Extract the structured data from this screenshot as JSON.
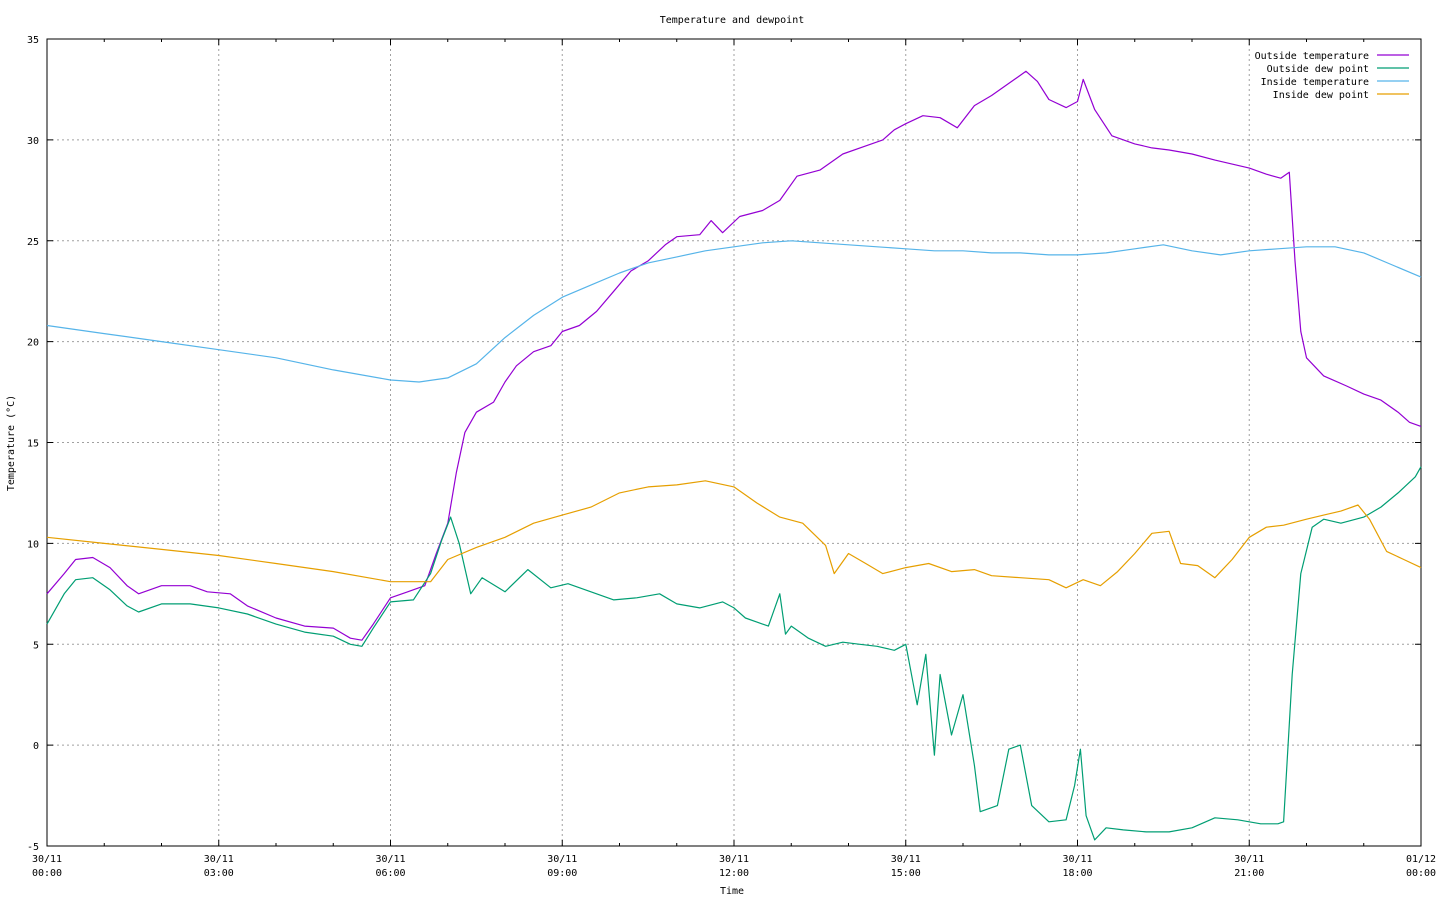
{
  "chart_data": {
    "type": "line",
    "title": "Temperature and dewpoint",
    "xlabel": "Time",
    "ylabel": "Temperature (°C)",
    "ylim": [
      -5,
      35
    ],
    "xlim": [
      0,
      24
    ],
    "grid": true,
    "legend_position": "top-right",
    "yticks": [
      -5,
      0,
      5,
      10,
      15,
      20,
      25,
      30,
      35
    ],
    "xticks": [
      {
        "x": 0,
        "date": "30/11",
        "time": "00:00"
      },
      {
        "x": 3,
        "date": "30/11",
        "time": "03:00"
      },
      {
        "x": 6,
        "date": "30/11",
        "time": "06:00"
      },
      {
        "x": 9,
        "date": "30/11",
        "time": "09:00"
      },
      {
        "x": 12,
        "date": "30/11",
        "time": "12:00"
      },
      {
        "x": 15,
        "date": "30/11",
        "time": "15:00"
      },
      {
        "x": 18,
        "date": "30/11",
        "time": "18:00"
      },
      {
        "x": 21,
        "date": "30/11",
        "time": "21:00"
      },
      {
        "x": 24,
        "date": "01/12",
        "time": "00:00"
      }
    ],
    "series": [
      {
        "name": "Outside temperature",
        "color": "#9400d3",
        "points": [
          [
            0,
            7.5
          ],
          [
            0.3,
            8.5
          ],
          [
            0.5,
            9.2
          ],
          [
            0.8,
            9.3
          ],
          [
            1.1,
            8.8
          ],
          [
            1.4,
            7.9
          ],
          [
            1.6,
            7.5
          ],
          [
            2.0,
            7.9
          ],
          [
            2.5,
            7.9
          ],
          [
            2.8,
            7.6
          ],
          [
            3.2,
            7.5
          ],
          [
            3.5,
            6.9
          ],
          [
            4.0,
            6.3
          ],
          [
            4.5,
            5.9
          ],
          [
            5.0,
            5.8
          ],
          [
            5.3,
            5.3
          ],
          [
            5.5,
            5.2
          ],
          [
            5.7,
            6.0
          ],
          [
            6.0,
            7.3
          ],
          [
            6.3,
            7.6
          ],
          [
            6.6,
            7.9
          ],
          [
            6.8,
            9.5
          ],
          [
            7.0,
            11.0
          ],
          [
            7.15,
            13.5
          ],
          [
            7.3,
            15.5
          ],
          [
            7.5,
            16.5
          ],
          [
            7.8,
            17.0
          ],
          [
            8.0,
            18.0
          ],
          [
            8.2,
            18.8
          ],
          [
            8.5,
            19.5
          ],
          [
            8.8,
            19.8
          ],
          [
            9.0,
            20.5
          ],
          [
            9.3,
            20.8
          ],
          [
            9.6,
            21.5
          ],
          [
            9.9,
            22.5
          ],
          [
            10.2,
            23.5
          ],
          [
            10.5,
            24.0
          ],
          [
            10.8,
            24.8
          ],
          [
            11.0,
            25.2
          ],
          [
            11.4,
            25.3
          ],
          [
            11.6,
            26.0
          ],
          [
            11.8,
            25.4
          ],
          [
            12.1,
            26.2
          ],
          [
            12.5,
            26.5
          ],
          [
            12.8,
            27.0
          ],
          [
            13.1,
            28.2
          ],
          [
            13.5,
            28.5
          ],
          [
            13.9,
            29.3
          ],
          [
            14.3,
            29.7
          ],
          [
            14.6,
            30.0
          ],
          [
            14.8,
            30.5
          ],
          [
            15.0,
            30.8
          ],
          [
            15.3,
            31.2
          ],
          [
            15.6,
            31.1
          ],
          [
            15.9,
            30.6
          ],
          [
            16.2,
            31.7
          ],
          [
            16.5,
            32.2
          ],
          [
            16.8,
            32.8
          ],
          [
            17.1,
            33.4
          ],
          [
            17.3,
            32.9
          ],
          [
            17.5,
            32.0
          ],
          [
            17.8,
            31.6
          ],
          [
            18.0,
            31.9
          ],
          [
            18.1,
            33.0
          ],
          [
            18.3,
            31.5
          ],
          [
            18.6,
            30.2
          ],
          [
            19.0,
            29.8
          ],
          [
            19.3,
            29.6
          ],
          [
            19.6,
            29.5
          ],
          [
            20.0,
            29.3
          ],
          [
            20.4,
            29.0
          ],
          [
            20.7,
            28.8
          ],
          [
            21.0,
            28.6
          ],
          [
            21.3,
            28.3
          ],
          [
            21.55,
            28.1
          ],
          [
            21.7,
            28.4
          ],
          [
            21.8,
            24.0
          ],
          [
            21.9,
            20.5
          ],
          [
            22.0,
            19.2
          ],
          [
            22.3,
            18.3
          ],
          [
            22.7,
            17.8
          ],
          [
            23.0,
            17.4
          ],
          [
            23.3,
            17.1
          ],
          [
            23.6,
            16.5
          ],
          [
            23.8,
            16.0
          ],
          [
            24.0,
            15.8
          ]
        ]
      },
      {
        "name": "Outside dew point",
        "color": "#009e73",
        "points": [
          [
            0,
            6.0
          ],
          [
            0.3,
            7.5
          ],
          [
            0.5,
            8.2
          ],
          [
            0.8,
            8.3
          ],
          [
            1.1,
            7.7
          ],
          [
            1.4,
            6.9
          ],
          [
            1.6,
            6.6
          ],
          [
            2.0,
            7.0
          ],
          [
            2.5,
            7.0
          ],
          [
            3.0,
            6.8
          ],
          [
            3.5,
            6.5
          ],
          [
            4.0,
            6.0
          ],
          [
            4.5,
            5.6
          ],
          [
            5.0,
            5.4
          ],
          [
            5.3,
            5.0
          ],
          [
            5.5,
            4.9
          ],
          [
            5.7,
            5.8
          ],
          [
            6.0,
            7.1
          ],
          [
            6.4,
            7.2
          ],
          [
            6.7,
            8.5
          ],
          [
            6.9,
            10.2
          ],
          [
            7.05,
            11.3
          ],
          [
            7.2,
            10.0
          ],
          [
            7.4,
            7.5
          ],
          [
            7.6,
            8.3
          ],
          [
            8.0,
            7.6
          ],
          [
            8.4,
            8.7
          ],
          [
            8.8,
            7.8
          ],
          [
            9.1,
            8.0
          ],
          [
            9.5,
            7.6
          ],
          [
            9.9,
            7.2
          ],
          [
            10.3,
            7.3
          ],
          [
            10.7,
            7.5
          ],
          [
            11.0,
            7.0
          ],
          [
            11.4,
            6.8
          ],
          [
            11.8,
            7.1
          ],
          [
            12.0,
            6.8
          ],
          [
            12.2,
            6.3
          ],
          [
            12.4,
            6.1
          ],
          [
            12.6,
            5.9
          ],
          [
            12.8,
            7.5
          ],
          [
            12.9,
            5.5
          ],
          [
            13.0,
            5.9
          ],
          [
            13.3,
            5.3
          ],
          [
            13.6,
            4.9
          ],
          [
            13.9,
            5.1
          ],
          [
            14.2,
            5.0
          ],
          [
            14.5,
            4.9
          ],
          [
            14.8,
            4.7
          ],
          [
            15.0,
            5.0
          ],
          [
            15.2,
            2.0
          ],
          [
            15.35,
            4.5
          ],
          [
            15.5,
            -0.5
          ],
          [
            15.6,
            3.5
          ],
          [
            15.8,
            0.5
          ],
          [
            16.0,
            2.5
          ],
          [
            16.2,
            -1.0
          ],
          [
            16.3,
            -3.3
          ],
          [
            16.6,
            -3.0
          ],
          [
            16.8,
            -0.2
          ],
          [
            17.0,
            0.0
          ],
          [
            17.2,
            -3.0
          ],
          [
            17.5,
            -3.8
          ],
          [
            17.8,
            -3.7
          ],
          [
            17.95,
            -2.0
          ],
          [
            18.05,
            -0.2
          ],
          [
            18.15,
            -3.5
          ],
          [
            18.3,
            -4.7
          ],
          [
            18.5,
            -4.1
          ],
          [
            18.8,
            -4.2
          ],
          [
            19.2,
            -4.3
          ],
          [
            19.6,
            -4.3
          ],
          [
            20.0,
            -4.1
          ],
          [
            20.4,
            -3.6
          ],
          [
            20.8,
            -3.7
          ],
          [
            21.2,
            -3.9
          ],
          [
            21.5,
            -3.9
          ],
          [
            21.6,
            -3.8
          ],
          [
            21.75,
            3.5
          ],
          [
            21.9,
            8.5
          ],
          [
            22.1,
            10.8
          ],
          [
            22.3,
            11.2
          ],
          [
            22.6,
            11.0
          ],
          [
            23.0,
            11.3
          ],
          [
            23.3,
            11.8
          ],
          [
            23.6,
            12.5
          ],
          [
            23.9,
            13.3
          ],
          [
            24.0,
            13.8
          ]
        ]
      },
      {
        "name": "Inside temperature",
        "color": "#56b4e9",
        "points": [
          [
            0,
            20.8
          ],
          [
            1,
            20.4
          ],
          [
            2,
            20.0
          ],
          [
            3,
            19.6
          ],
          [
            4,
            19.2
          ],
          [
            5,
            18.6
          ],
          [
            6,
            18.1
          ],
          [
            6.5,
            18.0
          ],
          [
            7.0,
            18.2
          ],
          [
            7.5,
            18.9
          ],
          [
            8.0,
            20.2
          ],
          [
            8.5,
            21.3
          ],
          [
            9.0,
            22.2
          ],
          [
            9.5,
            22.8
          ],
          [
            10.0,
            23.4
          ],
          [
            10.5,
            23.9
          ],
          [
            11.0,
            24.2
          ],
          [
            11.5,
            24.5
          ],
          [
            12.0,
            24.7
          ],
          [
            12.5,
            24.9
          ],
          [
            13.0,
            25.0
          ],
          [
            13.5,
            24.9
          ],
          [
            14.0,
            24.8
          ],
          [
            14.5,
            24.7
          ],
          [
            15.0,
            24.6
          ],
          [
            15.5,
            24.5
          ],
          [
            16.0,
            24.5
          ],
          [
            16.5,
            24.4
          ],
          [
            17.0,
            24.4
          ],
          [
            17.5,
            24.3
          ],
          [
            18.0,
            24.3
          ],
          [
            18.5,
            24.4
          ],
          [
            19.0,
            24.6
          ],
          [
            19.5,
            24.8
          ],
          [
            20.0,
            24.5
          ],
          [
            20.5,
            24.3
          ],
          [
            21.0,
            24.5
          ],
          [
            21.5,
            24.6
          ],
          [
            22.0,
            24.7
          ],
          [
            22.5,
            24.7
          ],
          [
            23.0,
            24.4
          ],
          [
            23.5,
            23.8
          ],
          [
            24.0,
            23.2
          ]
        ]
      },
      {
        "name": "Inside dew point",
        "color": "#e69f00",
        "points": [
          [
            0,
            10.3
          ],
          [
            1,
            10.0
          ],
          [
            2,
            9.7
          ],
          [
            3,
            9.4
          ],
          [
            4,
            9.0
          ],
          [
            5,
            8.6
          ],
          [
            6,
            8.1
          ],
          [
            6.7,
            8.1
          ],
          [
            7.0,
            9.2
          ],
          [
            7.5,
            9.8
          ],
          [
            8.0,
            10.3
          ],
          [
            8.5,
            11.0
          ],
          [
            9.0,
            11.4
          ],
          [
            9.5,
            11.8
          ],
          [
            10.0,
            12.5
          ],
          [
            10.5,
            12.8
          ],
          [
            11.0,
            12.9
          ],
          [
            11.5,
            13.1
          ],
          [
            12.0,
            12.8
          ],
          [
            12.4,
            12.0
          ],
          [
            12.8,
            11.3
          ],
          [
            13.2,
            11.0
          ],
          [
            13.6,
            9.9
          ],
          [
            13.75,
            8.5
          ],
          [
            14.0,
            9.5
          ],
          [
            14.3,
            9.0
          ],
          [
            14.6,
            8.5
          ],
          [
            15.0,
            8.8
          ],
          [
            15.4,
            9.0
          ],
          [
            15.8,
            8.6
          ],
          [
            16.2,
            8.7
          ],
          [
            16.5,
            8.4
          ],
          [
            17.0,
            8.3
          ],
          [
            17.5,
            8.2
          ],
          [
            17.8,
            7.8
          ],
          [
            18.1,
            8.2
          ],
          [
            18.4,
            7.9
          ],
          [
            18.7,
            8.6
          ],
          [
            19.0,
            9.5
          ],
          [
            19.3,
            10.5
          ],
          [
            19.6,
            10.6
          ],
          [
            19.8,
            9.0
          ],
          [
            20.1,
            8.9
          ],
          [
            20.4,
            8.3
          ],
          [
            20.7,
            9.2
          ],
          [
            21.0,
            10.3
          ],
          [
            21.3,
            10.8
          ],
          [
            21.6,
            10.9
          ],
          [
            22.0,
            11.2
          ],
          [
            22.3,
            11.4
          ],
          [
            22.6,
            11.6
          ],
          [
            22.9,
            11.9
          ],
          [
            23.1,
            11.2
          ],
          [
            23.4,
            9.6
          ],
          [
            23.7,
            9.2
          ],
          [
            24.0,
            8.8
          ]
        ]
      }
    ]
  }
}
